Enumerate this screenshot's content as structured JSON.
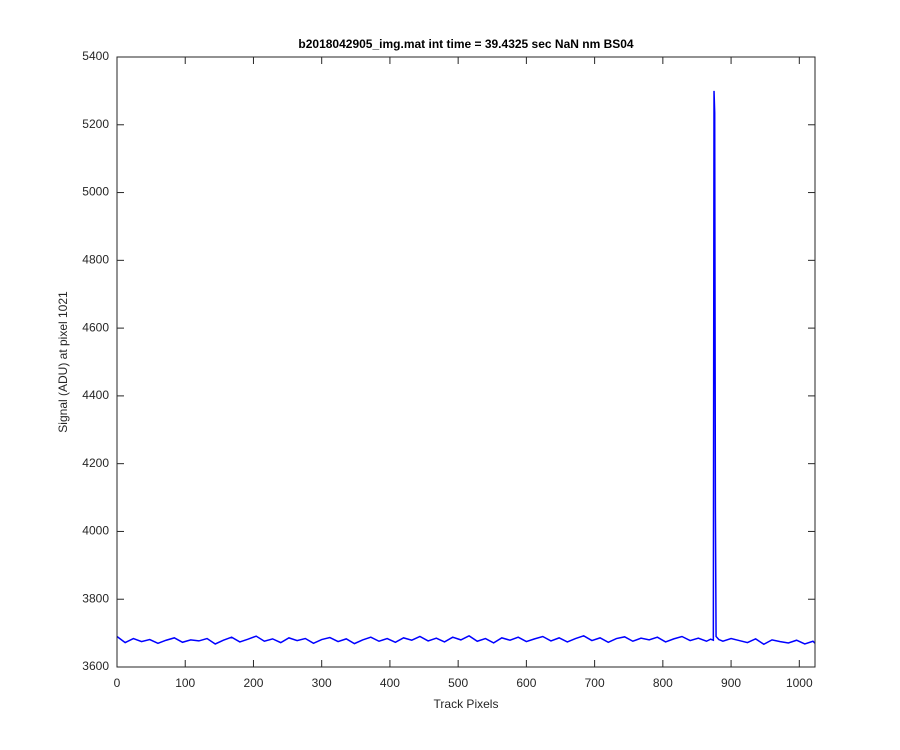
{
  "chart_data": {
    "type": "line",
    "title": "b2018042905_img.mat int time = 39.4325 sec  NaN nm BS04",
    "x_label": "Track Pixels",
    "y_label": "Signal (ADU) at pixel 1021",
    "x": [
      0,
      12,
      24,
      36,
      48,
      60,
      72,
      84,
      96,
      108,
      120,
      132,
      144,
      156,
      168,
      180,
      192,
      204,
      216,
      228,
      240,
      252,
      264,
      276,
      288,
      300,
      312,
      324,
      336,
      348,
      360,
      372,
      384,
      396,
      408,
      420,
      432,
      444,
      456,
      468,
      480,
      492,
      504,
      516,
      528,
      540,
      552,
      564,
      576,
      588,
      600,
      612,
      624,
      636,
      648,
      660,
      672,
      684,
      696,
      708,
      720,
      732,
      744,
      756,
      768,
      780,
      792,
      804,
      816,
      828,
      840,
      852,
      864,
      870,
      874,
      875,
      876,
      877,
      878,
      882,
      888,
      900,
      912,
      924,
      936,
      948,
      960,
      972,
      984,
      996,
      1008,
      1020,
      1023
    ],
    "series": [
      {
        "color": "#0000ff",
        "values": [
          3690,
          3672,
          3684,
          3675,
          3681,
          3670,
          3679,
          3686,
          3673,
          3680,
          3677,
          3684,
          3668,
          3679,
          3688,
          3674,
          3682,
          3691,
          3676,
          3683,
          3672,
          3686,
          3678,
          3684,
          3670,
          3681,
          3687,
          3675,
          3683,
          3669,
          3680,
          3688,
          3676,
          3684,
          3673,
          3686,
          3679,
          3690,
          3677,
          3685,
          3674,
          3688,
          3680,
          3692,
          3676,
          3684,
          3671,
          3686,
          3679,
          3688,
          3675,
          3683,
          3690,
          3677,
          3686,
          3674,
          3684,
          3692,
          3678,
          3686,
          3673,
          3684,
          3689,
          3676,
          3685,
          3680,
          3688,
          3674,
          3683,
          3690,
          3678,
          3685,
          3676,
          3682,
          3679,
          5300,
          5235,
          4070,
          3690,
          3681,
          3676,
          3684,
          3678,
          3672,
          3683,
          3667,
          3680,
          3675,
          3671,
          3679,
          3668,
          3676,
          3670
        ]
      }
    ],
    "xlim": [
      0,
      1023
    ],
    "xticks": [
      0,
      100,
      200,
      300,
      400,
      500,
      600,
      700,
      800,
      900,
      1000
    ],
    "ylim": [
      3600,
      5400
    ],
    "yticks": [
      3600,
      3800,
      4000,
      4200,
      4400,
      4600,
      4800,
      5000,
      5200,
      5400
    ]
  }
}
